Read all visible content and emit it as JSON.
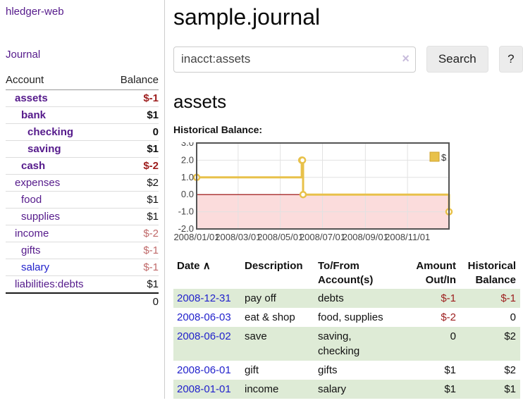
{
  "app": {
    "title": "hledger-web"
  },
  "nav": {
    "journal_label": "Journal"
  },
  "sidebar": {
    "columns": {
      "account": "Account",
      "balance": "Balance"
    },
    "accounts": [
      {
        "name": "assets",
        "depth": 1,
        "balance": "$-1",
        "bold": true,
        "balance_style": "neg-strong",
        "link_style": "purple"
      },
      {
        "name": "bank",
        "depth": 2,
        "balance": "$1",
        "bold": true,
        "balance_style": "pos",
        "link_style": "purple"
      },
      {
        "name": "checking",
        "depth": 3,
        "balance": "0",
        "bold": true,
        "balance_style": "pos",
        "link_style": "purple"
      },
      {
        "name": "saving",
        "depth": 3,
        "balance": "$1",
        "bold": true,
        "balance_style": "pos",
        "link_style": "purple"
      },
      {
        "name": "cash",
        "depth": 2,
        "balance": "$-2",
        "bold": true,
        "balance_style": "neg-strong",
        "link_style": "purple"
      },
      {
        "name": "expenses",
        "depth": 1,
        "balance": "$2",
        "bold": false,
        "balance_style": "pos",
        "link_style": "purple"
      },
      {
        "name": "food",
        "depth": 2,
        "balance": "$1",
        "bold": false,
        "balance_style": "pos",
        "link_style": "purple"
      },
      {
        "name": "supplies",
        "depth": 2,
        "balance": "$1",
        "bold": false,
        "balance_style": "pos",
        "link_style": "purple"
      },
      {
        "name": "income",
        "depth": 1,
        "balance": "$-2",
        "bold": false,
        "balance_style": "neg-soft",
        "link_style": "purple"
      },
      {
        "name": "gifts",
        "depth": 2,
        "balance": "$-1",
        "bold": false,
        "balance_style": "neg-soft",
        "link_style": "purple"
      },
      {
        "name": "salary",
        "depth": 2,
        "balance": "$-1",
        "bold": false,
        "balance_style": "neg-soft",
        "link_style": "blue"
      },
      {
        "name": "liabilities:debts",
        "depth": 1,
        "balance": "$1",
        "bold": false,
        "balance_style": "pos",
        "link_style": "purple"
      }
    ],
    "total": "0"
  },
  "header": {
    "title": "sample.journal"
  },
  "search": {
    "value": "inacct:assets",
    "clear_icon": "×",
    "button_label": "Search",
    "help_label": "?"
  },
  "main": {
    "account_heading": "assets"
  },
  "chart_data": {
    "type": "line",
    "step": true,
    "title": "Historical Balance:",
    "xlim": [
      "2008-01-01",
      "2008-12-31"
    ],
    "ylim": [
      -2,
      3
    ],
    "yticks": [
      "3.0",
      "2.0",
      "1.0",
      "0.0",
      "-1.0",
      "-2.0"
    ],
    "ytick_values": [
      3,
      2,
      1,
      0,
      -1,
      -2
    ],
    "xticks": [
      {
        "label": "2008/01/01",
        "date": "2008-01-01"
      },
      {
        "label": "2008/03/01",
        "date": "2008-03-01"
      },
      {
        "label": "2008/05/01",
        "date": "2008-05-01"
      },
      {
        "label": "2008/07/01",
        "date": "2008-07-01"
      },
      {
        "label": "2008/09/01",
        "date": "2008-09-01"
      },
      {
        "label": "2008/11/01",
        "date": "2008-11-01"
      }
    ],
    "series": [
      {
        "name": "$",
        "color": "#e8c14a",
        "points": [
          [
            "2008-01-01",
            1
          ],
          [
            "2008-06-01",
            2
          ],
          [
            "2008-06-02",
            2
          ],
          [
            "2008-06-03",
            0
          ],
          [
            "2008-12-31",
            -1
          ]
        ]
      }
    ],
    "legend": {
      "label": "$",
      "position": "top-right"
    },
    "grid": true,
    "negative_region_fill": "#fbdcdc",
    "zero_line_color": "#990000",
    "border_color": "#545454",
    "gridline_color": "#e2e2e2"
  },
  "transactions": {
    "sort_icon": "∧",
    "columns": {
      "date": "Date",
      "description": "Description",
      "accounts_line1": "To/From",
      "accounts_line2": "Account(s)",
      "amount_line1": "Amount",
      "amount_line2": "Out/In",
      "balance_line1": "Historical",
      "balance_line2": "Balance"
    },
    "rows": [
      {
        "date": "2008-12-31",
        "description": "pay off",
        "accounts": [
          "debts"
        ],
        "amount": "$-1",
        "amount_neg": true,
        "balance": "$-1",
        "balance_neg": true,
        "green": true
      },
      {
        "date": "2008-06-03",
        "description": "eat & shop",
        "accounts": [
          "food, supplies"
        ],
        "amount": "$-2",
        "amount_neg": true,
        "balance": "0",
        "balance_neg": false,
        "green": false
      },
      {
        "date": "2008-06-02",
        "description": "save",
        "accounts": [
          "saving,",
          "checking"
        ],
        "amount": "0",
        "amount_neg": false,
        "balance": "$2",
        "balance_neg": false,
        "green": true
      },
      {
        "date": "2008-06-01",
        "description": "gift",
        "accounts": [
          "gifts"
        ],
        "amount": "$1",
        "amount_neg": false,
        "balance": "$2",
        "balance_neg": false,
        "green": false
      },
      {
        "date": "2008-01-01",
        "description": "income",
        "accounts": [
          "salary"
        ],
        "amount": "$1",
        "amount_neg": false,
        "balance": "$1",
        "balance_neg": false,
        "green": true
      }
    ]
  }
}
